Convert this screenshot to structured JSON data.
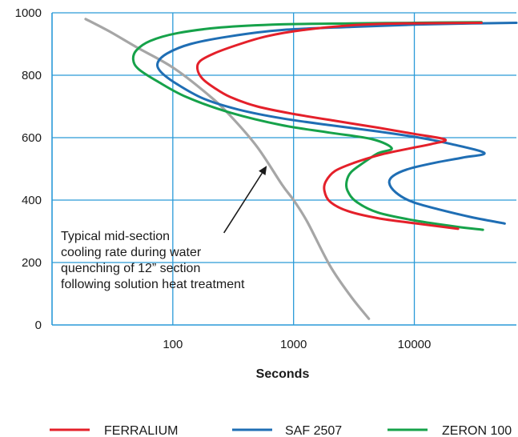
{
  "chart_data": {
    "type": "line",
    "title": "",
    "xlabel": "Seconds",
    "ylabel": "",
    "x_scale": "log",
    "xlim": [
      10,
      70000
    ],
    "ylim": [
      0,
      1000
    ],
    "x_ticks": [
      100,
      1000,
      10000
    ],
    "x_tick_labels": [
      "100",
      "1000",
      "10000"
    ],
    "y_ticks": [
      0,
      200,
      400,
      600,
      800,
      1000
    ],
    "y_tick_labels": [
      "0",
      "200",
      "400",
      "600",
      "800",
      "1000"
    ],
    "grid": true,
    "grid_color": "#2a9ad8",
    "legend_position": "bottom",
    "series": [
      {
        "name": "FERRALIUM",
        "color": "#e4202a",
        "points": [
          [
            36000,
            968
          ],
          [
            8000,
            966
          ],
          [
            3000,
            960
          ],
          [
            1200,
            945
          ],
          [
            600,
            925
          ],
          [
            360,
            900
          ],
          [
            220,
            870
          ],
          [
            168,
            845
          ],
          [
            160,
            820
          ],
          [
            175,
            790
          ],
          [
            220,
            760
          ],
          [
            300,
            730
          ],
          [
            500,
            700
          ],
          [
            1000,
            676
          ],
          [
            2200,
            654
          ],
          [
            5000,
            632
          ],
          [
            10000,
            612
          ],
          [
            18000,
            594
          ],
          [
            14000,
            580
          ],
          [
            9000,
            565
          ],
          [
            5200,
            545
          ],
          [
            3200,
            520
          ],
          [
            2200,
            493
          ],
          [
            1850,
            460
          ],
          [
            1800,
            430
          ],
          [
            2000,
            395
          ],
          [
            2800,
            365
          ],
          [
            5000,
            342
          ],
          [
            10000,
            326
          ],
          [
            23000,
            308
          ]
        ]
      },
      {
        "name": "SAF 2507",
        "color": "#1f6eb4",
        "points": [
          [
            70000,
            968
          ],
          [
            30000,
            966
          ],
          [
            10000,
            962
          ],
          [
            3000,
            955
          ],
          [
            800,
            945
          ],
          [
            300,
            925
          ],
          [
            140,
            900
          ],
          [
            90,
            870
          ],
          [
            75,
            840
          ],
          [
            80,
            810
          ],
          [
            110,
            770
          ],
          [
            180,
            725
          ],
          [
            350,
            690
          ],
          [
            800,
            662
          ],
          [
            2000,
            640
          ],
          [
            5000,
            620
          ],
          [
            11000,
            600
          ],
          [
            20000,
            580
          ],
          [
            38000,
            551
          ],
          [
            25000,
            536
          ],
          [
            15000,
            520
          ],
          [
            9000,
            500
          ],
          [
            6700,
            478
          ],
          [
            6200,
            455
          ],
          [
            7000,
            425
          ],
          [
            9500,
            395
          ],
          [
            16000,
            370
          ],
          [
            30000,
            345
          ],
          [
            56000,
            325
          ]
        ]
      },
      {
        "name": "ZERON 100",
        "color": "#16a24a",
        "points": [
          [
            36000,
            970
          ],
          [
            10000,
            968
          ],
          [
            3000,
            966
          ],
          [
            800,
            963
          ],
          [
            250,
            953
          ],
          [
            110,
            935
          ],
          [
            65,
            910
          ],
          [
            50,
            880
          ],
          [
            47,
            850
          ],
          [
            52,
            820
          ],
          [
            75,
            780
          ],
          [
            130,
            730
          ],
          [
            300,
            680
          ],
          [
            800,
            640
          ],
          [
            2000,
            616
          ],
          [
            4500,
            595
          ],
          [
            6500,
            566
          ],
          [
            5000,
            550
          ],
          [
            3800,
            520
          ],
          [
            3000,
            490
          ],
          [
            2750,
            460
          ],
          [
            2800,
            430
          ],
          [
            3300,
            395
          ],
          [
            5000,
            360
          ],
          [
            10000,
            335
          ],
          [
            22000,
            315
          ],
          [
            37000,
            305
          ]
        ]
      },
      {
        "name": "",
        "color": "#a6a6a6",
        "points": [
          [
            19,
            980
          ],
          [
            30,
            940
          ],
          [
            50,
            890
          ],
          [
            100,
            825
          ],
          [
            200,
            735
          ],
          [
            300,
            670
          ],
          [
            500,
            570
          ],
          [
            800,
            450
          ],
          [
            1000,
            400
          ],
          [
            1300,
            330
          ],
          [
            2000,
            190
          ],
          [
            3000,
            90
          ],
          [
            4200,
            20
          ]
        ]
      }
    ],
    "legend": [
      {
        "label": "FERRALIUM",
        "color": "#e4202a"
      },
      {
        "label": "SAF 2507",
        "color": "#1f6eb4"
      },
      {
        "label": "ZERON 100",
        "color": "#16a24a"
      }
    ],
    "annotation": {
      "lines": [
        "Typical mid-section",
        "cooling rate during water",
        "quenching of 12” section",
        "following solution heat treatment"
      ],
      "arrow_target": [
        600,
        510
      ],
      "arrow_start": [
        265,
        295
      ]
    }
  }
}
